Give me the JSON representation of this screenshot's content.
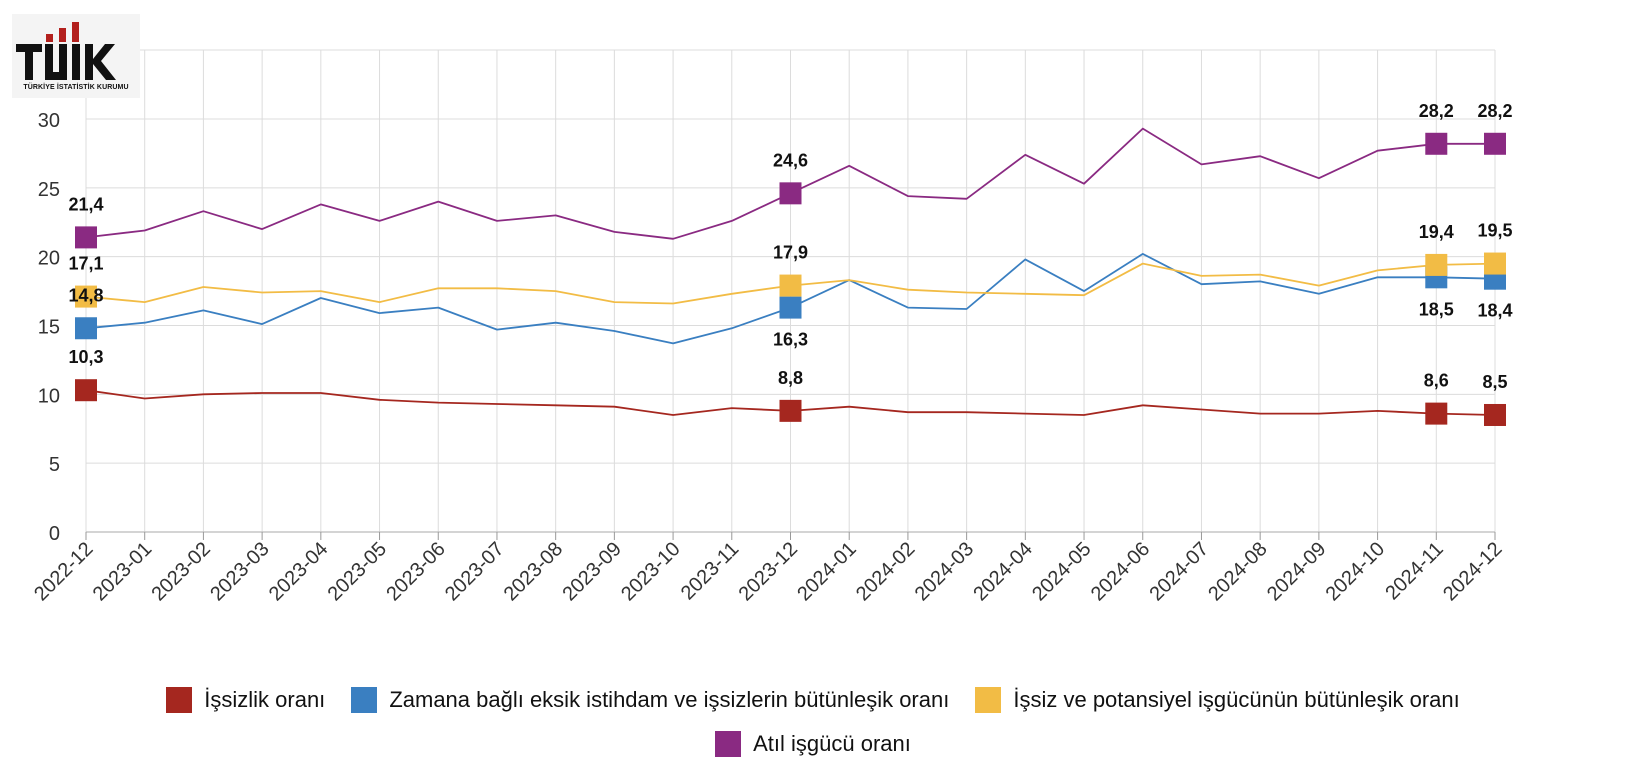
{
  "logo": {
    "text": "TÜİK",
    "subtitle": "TÜRKİYE İSTATİSTİK KURUMU"
  },
  "chart_data": {
    "type": "line",
    "x": [
      "2022-12",
      "2023-01",
      "2023-02",
      "2023-03",
      "2023-04",
      "2023-05",
      "2023-06",
      "2023-07",
      "2023-08",
      "2023-09",
      "2023-10",
      "2023-11",
      "2023-12",
      "2024-01",
      "2024-02",
      "2024-03",
      "2024-04",
      "2024-05",
      "2024-06",
      "2024-07",
      "2024-08",
      "2024-09",
      "2024-10",
      "2024-11",
      "2024-12"
    ],
    "ylim": [
      0,
      30
    ],
    "yticks": [
      0,
      5,
      10,
      15,
      20,
      25,
      30
    ],
    "grid": true,
    "legend": "bottom",
    "series": [
      {
        "name": "İşsizlik oranı",
        "color": "#a5271f",
        "values": [
          10.3,
          9.7,
          10.0,
          10.1,
          10.1,
          9.6,
          9.4,
          9.3,
          9.2,
          9.1,
          8.5,
          9.0,
          8.8,
          9.1,
          8.7,
          8.7,
          8.6,
          8.5,
          9.2,
          8.9,
          8.6,
          8.6,
          8.8,
          8.6,
          8.5
        ],
        "highlighted": [
          0,
          12,
          23,
          24
        ],
        "labels": {
          "0": "10,3",
          "12": "8,8",
          "23": "8,6",
          "24": "8,5"
        }
      },
      {
        "name": "Zamana bağlı eksik istihdam ve işsizlerin bütünleşik oranı",
        "color": "#3a7fc1",
        "values": [
          14.8,
          15.2,
          16.1,
          15.1,
          17.0,
          15.9,
          16.3,
          14.7,
          15.2,
          14.6,
          13.7,
          14.8,
          16.3,
          18.3,
          16.3,
          16.2,
          19.8,
          17.5,
          20.2,
          18.0,
          18.2,
          17.3,
          18.5,
          18.5,
          18.4
        ],
        "highlighted": [
          0,
          12,
          23,
          24
        ],
        "labels": {
          "0": "14,8",
          "12": "16,3",
          "23": "18,5",
          "24": "18,4"
        }
      },
      {
        "name": "İşsiz ve potansiyel işgücünün bütünleşik oranı",
        "color": "#f2bc45",
        "values": [
          17.1,
          16.7,
          17.8,
          17.4,
          17.5,
          16.7,
          17.7,
          17.7,
          17.5,
          16.7,
          16.6,
          17.3,
          17.9,
          18.3,
          17.6,
          17.4,
          17.3,
          17.2,
          19.5,
          18.6,
          18.7,
          17.9,
          19.0,
          19.4,
          19.5
        ],
        "highlighted": [
          0,
          12,
          23,
          24
        ],
        "labels": {
          "0": "17,1",
          "12": "17,9",
          "23": "19,4",
          "24": "19,5"
        }
      },
      {
        "name": "Atıl işgücü oranı",
        "color": "#8a2a82",
        "values": [
          21.4,
          21.9,
          23.3,
          22.0,
          23.8,
          22.6,
          24.0,
          22.6,
          23.0,
          21.8,
          21.3,
          22.6,
          24.6,
          26.6,
          24.4,
          24.2,
          27.4,
          25.3,
          29.3,
          26.7,
          27.3,
          25.7,
          27.7,
          28.2,
          28.2
        ],
        "highlighted": [
          0,
          12,
          23,
          24
        ],
        "labels": {
          "0": "21,4",
          "12": "24,6",
          "23": "28,2",
          "24": "28,2"
        }
      }
    ]
  }
}
